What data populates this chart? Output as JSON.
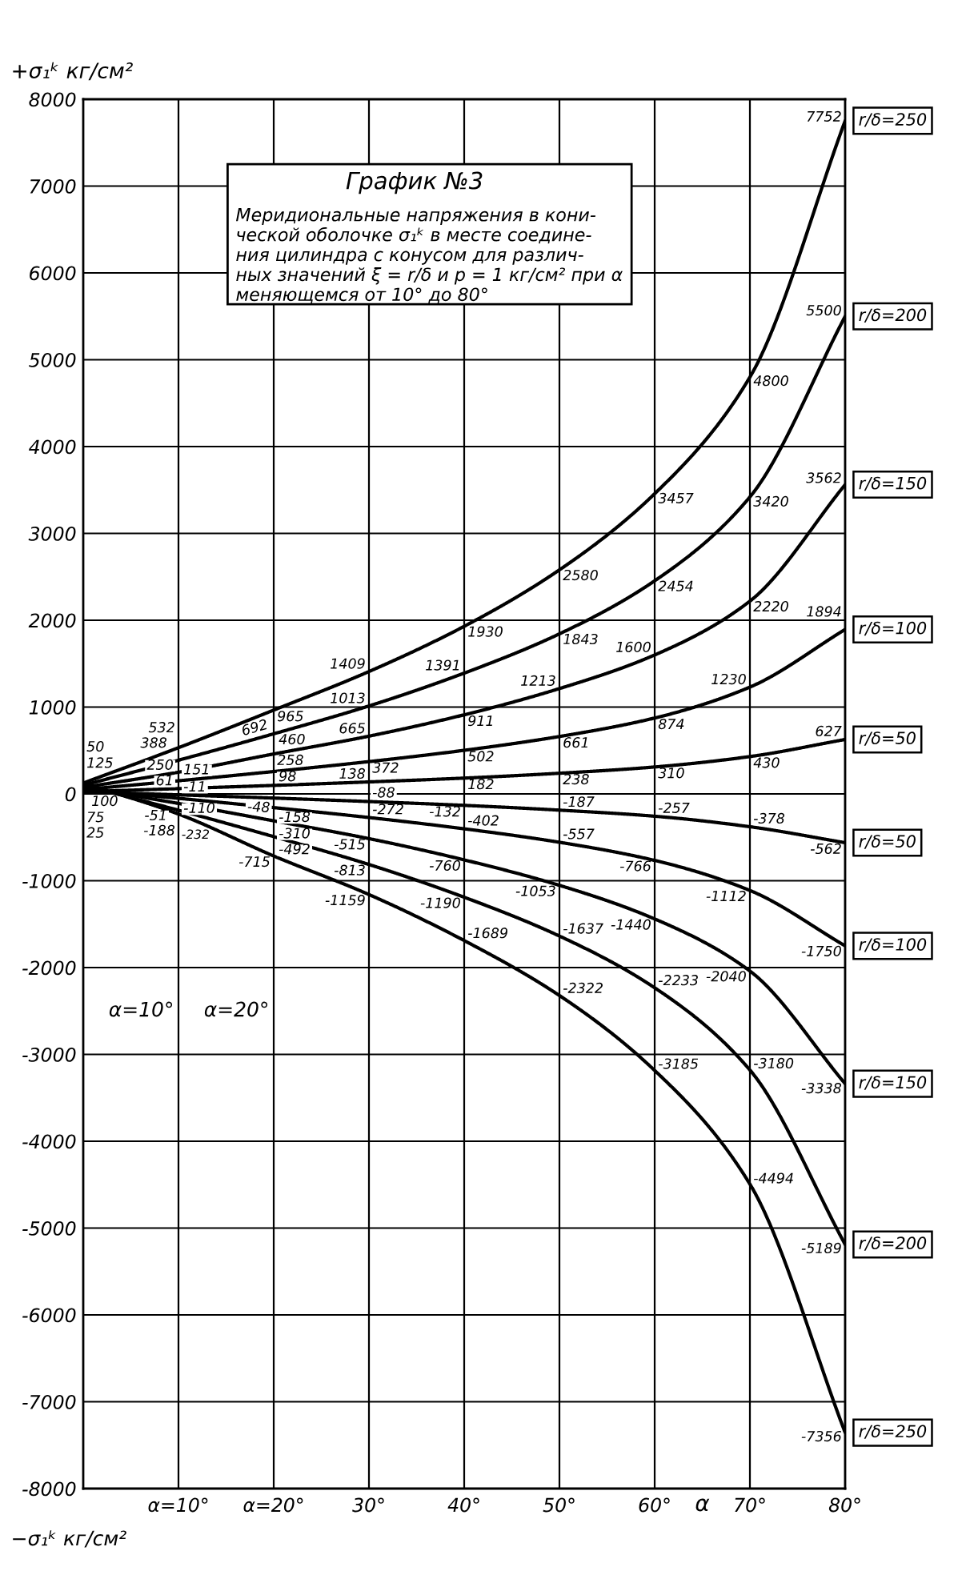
{
  "chart_data": {
    "type": "line",
    "title": "График №3",
    "subtitle": "Меридиональные напряжения в кони-\nческой оболочке σ₁ᵏ в месте соедине-\nния цилиндра с конусом для различ-\nных значений ξ = r/δ и p = 1 кг/см² при α\nменяющемся от 10° до 80°",
    "xlabel": "α",
    "ylabel": "+σ₁ᵏ кг/см²",
    "annotations": [
      "α=10°",
      "α=20°",
      "−σ₁ᵏ кг/см²"
    ],
    "x": [
      0,
      10,
      20,
      30,
      40,
      50,
      60,
      70,
      80
    ],
    "xlim": [
      0,
      80
    ],
    "xticks": [
      {
        "value": 10,
        "label": "α=10°"
      },
      {
        "value": 20,
        "label": "α=20°"
      },
      {
        "value": 30,
        "label": "30°"
      },
      {
        "value": 40,
        "label": "40°"
      },
      {
        "value": 50,
        "label": "50°"
      },
      {
        "value": 60,
        "label": "60°"
      },
      {
        "value": 70,
        "label": "70°"
      },
      {
        "value": 80,
        "label": "80°"
      }
    ],
    "ylim": [
      -8000,
      8000
    ],
    "yticks": [
      -8000,
      -7000,
      -6000,
      -5000,
      -4000,
      -3000,
      -2000,
      -1000,
      0,
      1000,
      2000,
      3000,
      4000,
      5000,
      6000,
      7000,
      8000
    ],
    "grid": true,
    "series": [
      {
        "name": "r/δ=250",
        "color": "#000000",
        "values": [
          125,
          532,
          965,
          1409,
          1930,
          2580,
          3457,
          4800,
          7752
        ],
        "value_labels": [
          "125",
          "532",
          "965",
          "1409",
          "1930",
          "2580",
          "3457",
          "4800",
          "7752"
        ]
      },
      {
        "name": "r/δ=200",
        "color": "#000000",
        "values": [
          100,
          388,
          692,
          1013,
          1391,
          1843,
          2454,
          3420,
          5500
        ],
        "value_labels": [
          "100",
          "388",
          "692",
          "1013",
          "1391",
          "1843",
          "2454",
          "3420",
          "5500"
        ]
      },
      {
        "name": "r/δ=150",
        "color": "#000000",
        "values": [
          75,
          250,
          460,
          665,
          911,
          1213,
          1600,
          2220,
          3562
        ],
        "value_labels": [
          "75",
          "250",
          "460",
          "665",
          "911",
          "1213",
          "1600",
          "2220",
          "3562"
        ]
      },
      {
        "name": "r/δ=100",
        "color": "#000000",
        "values": [
          50,
          151,
          258,
          372,
          502,
          661,
          874,
          1230,
          1894
        ],
        "value_labels": [
          "50",
          "151",
          "258",
          "372",
          "502",
          "661",
          "874",
          "1230",
          "1894"
        ]
      },
      {
        "name": "r/δ=50",
        "color": "#000000",
        "values": [
          25,
          61,
          98,
          138,
          182,
          238,
          310,
          430,
          627
        ],
        "value_labels": [
          "25",
          "61",
          "98",
          "138",
          "182",
          "238",
          "310",
          "430",
          "627"
        ]
      },
      {
        "name": "r/δ=50",
        "color": "#000000",
        "values": [
          25,
          -11,
          -48,
          -88,
          -132,
          -187,
          -257,
          -378,
          -562
        ],
        "value_labels": [
          null,
          "-11",
          "-48",
          "-88",
          "-132",
          "-187",
          "-257",
          "-378",
          "-562"
        ]
      },
      {
        "name": "r/δ=100",
        "color": "#000000",
        "values": [
          50,
          -51,
          -158,
          -272,
          -402,
          -557,
          -766,
          -1112,
          -1750
        ],
        "value_labels": [
          null,
          "-51",
          "-158",
          "-272",
          "-402",
          "-557",
          "-766",
          "-1112",
          "-1750"
        ]
      },
      {
        "name": "r/δ=150",
        "color": "#000000",
        "values": [
          75,
          -110,
          -310,
          -515,
          -760,
          -1053,
          -1440,
          -2040,
          -3338
        ],
        "value_labels": [
          null,
          "-110",
          "-310",
          "-515",
          "-760",
          "-1053",
          "-1440",
          "-2040",
          "-3338"
        ]
      },
      {
        "name": "r/δ=200",
        "color": "#000000",
        "values": [
          100,
          -188,
          -492,
          -813,
          -1190,
          -1637,
          -2233,
          -3180,
          -5189
        ],
        "value_labels": [
          null,
          "-188",
          "-492",
          "-813",
          "-1190",
          "-1637",
          "-2233",
          "-3180",
          "-5189"
        ]
      },
      {
        "name": "r/δ=250",
        "color": "#000000",
        "values": [
          125,
          -232,
          -715,
          -1159,
          -1689,
          -2322,
          -3185,
          -4494,
          -7356
        ],
        "value_labels": [
          null,
          "-232",
          "-715",
          "-1159",
          "-1689",
          "-2322",
          "-3185",
          "-4494",
          "-7356"
        ]
      }
    ]
  }
}
